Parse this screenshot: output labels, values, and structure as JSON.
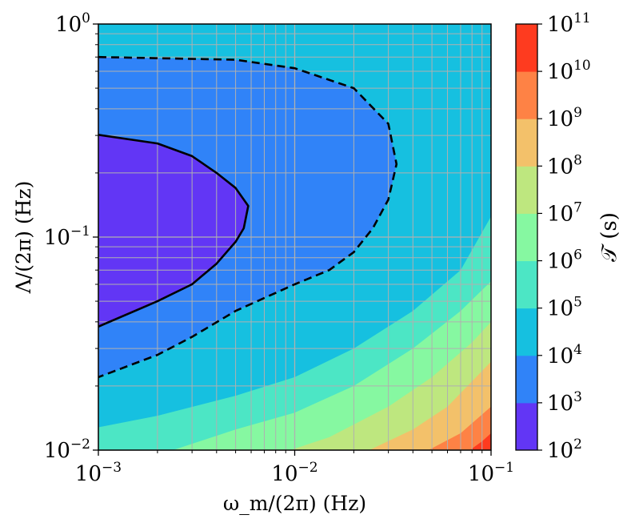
{
  "chart_data": {
    "type": "heatmap",
    "subtype": "filled-contour",
    "x_scale": "log",
    "y_scale": "log",
    "xlim": [
      0.001,
      0.1
    ],
    "ylim": [
      0.01,
      1
    ],
    "xlabel": "ω_m/(2π) (Hz)",
    "ylabel": "Λ/(2π) (Hz)",
    "x_ticks": [
      {
        "value": 0.001,
        "base": "10",
        "exp": "−3"
      },
      {
        "value": 0.01,
        "base": "10",
        "exp": "−2"
      },
      {
        "value": 0.1,
        "base": "10",
        "exp": "−1"
      }
    ],
    "y_ticks": [
      {
        "value": 0.01,
        "base": "10",
        "exp": "−2"
      },
      {
        "value": 0.1,
        "base": "10",
        "exp": "−1"
      },
      {
        "value": 1,
        "base": "10",
        "exp": "0"
      }
    ],
    "grid": true,
    "colorbar": {
      "label": "𝒯 (s)",
      "scale": "log",
      "levels": [
        {
          "value": 100,
          "base": "10",
          "exp": "2"
        },
        {
          "value": 1000,
          "base": "10",
          "exp": "3"
        },
        {
          "value": 10000,
          "base": "10",
          "exp": "4"
        },
        {
          "value": 100000,
          "base": "10",
          "exp": "5"
        },
        {
          "value": 1000000,
          "base": "10",
          "exp": "6"
        },
        {
          "value": 10000000,
          "base": "10",
          "exp": "7"
        },
        {
          "value": 100000000,
          "base": "10",
          "exp": "8"
        },
        {
          "value": 1000000000,
          "base": "10",
          "exp": "9"
        },
        {
          "value": 10000000000,
          "base": "10",
          "exp": "10"
        },
        {
          "value": 100000000000,
          "base": "10",
          "exp": "11"
        }
      ],
      "colors": [
        "#6236f5",
        "#3083f8",
        "#16c0e0",
        "#4ce6c5",
        "#86f8a1",
        "#bee77f",
        "#f3c16a",
        "#fe8245",
        "#fe3b1f"
      ]
    },
    "contour_lines": [
      {
        "level": 1000,
        "style": "solid",
        "points": [
          [
            0.001,
            0.302
          ],
          [
            0.002,
            0.275
          ],
          [
            0.003,
            0.24
          ],
          [
            0.004,
            0.2
          ],
          [
            0.005,
            0.17
          ],
          [
            0.0058,
            0.14
          ],
          [
            0.0055,
            0.11
          ],
          [
            0.005,
            0.095
          ],
          [
            0.004,
            0.075
          ],
          [
            0.003,
            0.06
          ],
          [
            0.002,
            0.05
          ],
          [
            0.001,
            0.038
          ]
        ]
      },
      {
        "level": 10000,
        "style": "dashed",
        "points": [
          [
            0.001,
            0.7
          ],
          [
            0.005,
            0.68
          ],
          [
            0.01,
            0.62
          ],
          [
            0.02,
            0.5
          ],
          [
            0.03,
            0.34
          ],
          [
            0.033,
            0.22
          ],
          [
            0.03,
            0.15
          ],
          [
            0.025,
            0.11
          ],
          [
            0.02,
            0.085
          ],
          [
            0.015,
            0.07
          ],
          [
            0.01,
            0.06
          ],
          [
            0.005,
            0.045
          ],
          [
            0.003,
            0.034
          ],
          [
            0.002,
            0.028
          ],
          [
            0.001,
            0.022
          ]
        ]
      }
    ],
    "regions": [
      {
        "level_index": 0,
        "points": [
          [
            0.001,
            0.302
          ],
          [
            0.002,
            0.275
          ],
          [
            0.003,
            0.24
          ],
          [
            0.004,
            0.2
          ],
          [
            0.005,
            0.17
          ],
          [
            0.0058,
            0.14
          ],
          [
            0.0055,
            0.11
          ],
          [
            0.005,
            0.095
          ],
          [
            0.004,
            0.075
          ],
          [
            0.003,
            0.06
          ],
          [
            0.002,
            0.05
          ],
          [
            0.001,
            0.038
          ]
        ]
      },
      {
        "level_index": 3,
        "points": [
          [
            0.001,
            0.0128
          ],
          [
            0.002,
            0.0145
          ],
          [
            0.005,
            0.018
          ],
          [
            0.01,
            0.022
          ],
          [
            0.02,
            0.03
          ],
          [
            0.04,
            0.045
          ],
          [
            0.07,
            0.07
          ],
          [
            0.1,
            0.125
          ],
          [
            0.1,
            0.01
          ],
          [
            0.001,
            0.01
          ]
        ]
      },
      {
        "level_index": 4,
        "points": [
          [
            0.0024,
            0.01
          ],
          [
            0.005,
            0.0125
          ],
          [
            0.01,
            0.015
          ],
          [
            0.02,
            0.02
          ],
          [
            0.04,
            0.03
          ],
          [
            0.07,
            0.045
          ],
          [
            0.1,
            0.062
          ],
          [
            0.1,
            0.01
          ]
        ]
      },
      {
        "level_index": 5,
        "points": [
          [
            0.0095,
            0.01
          ],
          [
            0.015,
            0.0115
          ],
          [
            0.03,
            0.016
          ],
          [
            0.05,
            0.022
          ],
          [
            0.08,
            0.032
          ],
          [
            0.1,
            0.04
          ],
          [
            0.1,
            0.01
          ]
        ]
      },
      {
        "level_index": 6,
        "points": [
          [
            0.024,
            0.01
          ],
          [
            0.04,
            0.0125
          ],
          [
            0.06,
            0.016
          ],
          [
            0.1,
            0.026
          ],
          [
            0.1,
            0.01
          ]
        ]
      },
      {
        "level_index": 7,
        "points": [
          [
            0.048,
            0.01
          ],
          [
            0.07,
            0.012
          ],
          [
            0.1,
            0.016
          ],
          [
            0.1,
            0.01
          ]
        ]
      },
      {
        "level_index": 8,
        "points": [
          [
            0.078,
            0.01
          ],
          [
            0.09,
            0.011
          ],
          [
            0.1,
            0.012
          ],
          [
            0.1,
            0.01
          ]
        ]
      }
    ],
    "background_level_index": 2,
    "inner_level_index": 1
  }
}
